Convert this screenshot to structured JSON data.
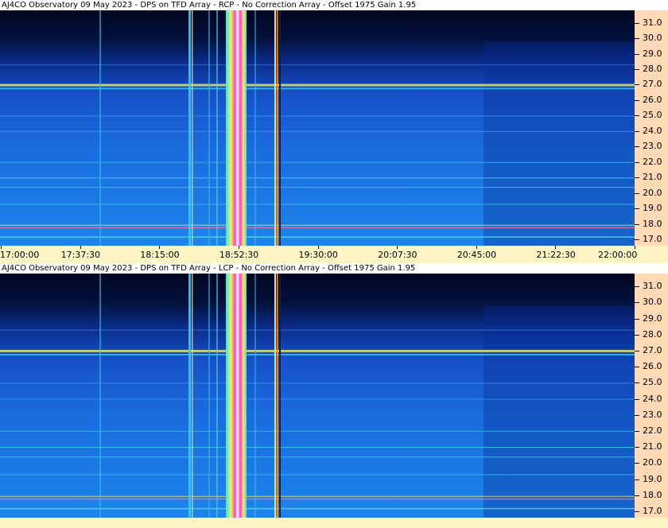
{
  "chart_data": [
    {
      "type": "heatmap",
      "title": "AJ4CO Observatory 09 May 2023 - DPS on TFD Array  - RCP  -  No Correction Array  -  Offset 1975  Gain 1.95",
      "y_ticks": [
        "17.0",
        "18.0",
        "19.0",
        "20.0",
        "21.0",
        "22.0",
        "23.0",
        "24.0",
        "25.0",
        "26.0",
        "27.0",
        "28.0",
        "29.0",
        "30.0",
        "31.0"
      ],
      "ylim": [
        16.6,
        31.8
      ],
      "x_ticks": [
        "17:00:00",
        "17:37:30",
        "18:15:00",
        "18:52:30",
        "19:30:00",
        "20:07:30",
        "20:45:00",
        "21:22:30",
        "22:00:00"
      ]
    },
    {
      "type": "heatmap",
      "title": "AJ4CO Observatory 09 May 2023 - DPS on TFD Array  - LCP  -  No Correction Array  -  Offset 1975  Gain 1.95",
      "y_ticks": [
        "17.0",
        "18.0",
        "19.0",
        "20.0",
        "21.0",
        "22.0",
        "23.0",
        "24.0",
        "25.0",
        "26.0",
        "27.0",
        "28.0",
        "29.0",
        "30.0",
        "31.0"
      ],
      "ylim": [
        16.6,
        31.8
      ]
    }
  ],
  "colors": {
    "background": "#fdf5c4",
    "axis_bg": "#fdd9b5",
    "dark": "#00082a",
    "blue": "#1a5cd8",
    "cyan": "#22c8f0",
    "yellow": "#f0f060",
    "magenta": "#ff20c0"
  }
}
